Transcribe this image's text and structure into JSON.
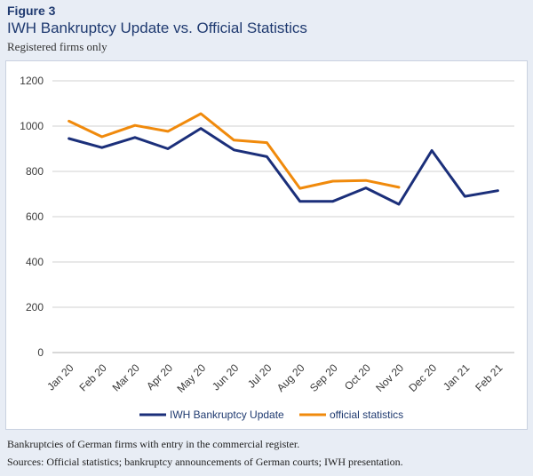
{
  "figure": {
    "label": "Figure 3",
    "title": "IWH Bankruptcy Update vs. Official Statistics",
    "subtitle": "Registered firms only"
  },
  "footnotes": {
    "line1": "Bankruptcies of German firms with entry in the commercial register.",
    "line2": "Sources: Official statistics; bankruptcy announcements of German courts; IWH presentation."
  },
  "colors": {
    "iwh": "#1b2f7a",
    "official": "#f08a0c",
    "grid": "#d0d0d0"
  },
  "chart_data": {
    "type": "line",
    "categories": [
      "Jan 20",
      "Feb 20",
      "Mar 20",
      "Apr 20",
      "May 20",
      "Jun 20",
      "Jul 20",
      "Aug 20",
      "Sep 20",
      "Oct 20",
      "Nov 20",
      "Dec 20",
      "Jan 21",
      "Feb 21"
    ],
    "series": [
      {
        "name": "IWH Bankruptcy Update",
        "values": [
          945,
          905,
          950,
          900,
          990,
          895,
          865,
          668,
          668,
          727,
          655,
          892,
          690,
          715
        ]
      },
      {
        "name": "official statistics",
        "values": [
          1022,
          953,
          1003,
          977,
          1055,
          938,
          927,
          725,
          757,
          760,
          730,
          null,
          null,
          null
        ]
      }
    ],
    "yticks": [
      0,
      200,
      400,
      600,
      800,
      1000,
      1200
    ],
    "ylim": [
      0,
      1200
    ],
    "grid": true,
    "legend": "bottom"
  }
}
